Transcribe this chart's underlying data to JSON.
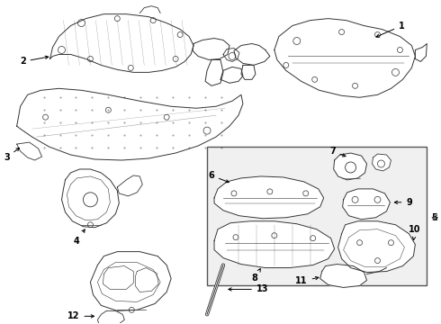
{
  "bg_color": "#ffffff",
  "line_color": "#333333",
  "label_color": "#000000",
  "box_bg": "#f0f0f0",
  "box_edge": "#555555",
  "fig_width": 4.9,
  "fig_height": 3.6,
  "dpi": 100
}
